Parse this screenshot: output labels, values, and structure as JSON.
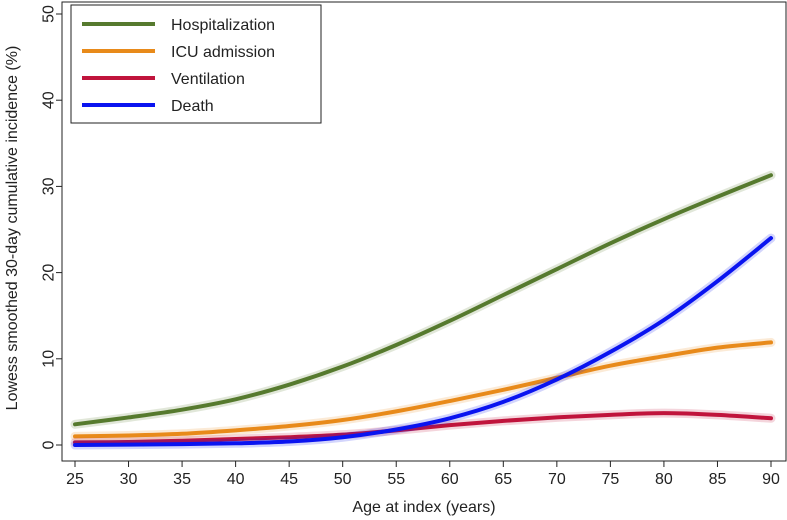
{
  "chart_data": {
    "type": "line",
    "title": "",
    "xlabel": "Age at index (years)",
    "ylabel": "Lowess smoothed 30-day cumulative incidence (%)",
    "xlim": [
      25,
      90
    ],
    "ylim": [
      0,
      50
    ],
    "x_ticks": [
      25,
      30,
      35,
      40,
      45,
      50,
      55,
      60,
      65,
      70,
      75,
      80,
      85,
      90
    ],
    "y_ticks": [
      0,
      10,
      20,
      30,
      40,
      50
    ],
    "legend_position": "top-left",
    "x": [
      25,
      30,
      35,
      40,
      45,
      50,
      55,
      60,
      65,
      70,
      75,
      80,
      85,
      90
    ],
    "series": [
      {
        "name": "Hospitalization",
        "color": "#567a2e",
        "values": [
          2.4,
          3.2,
          4.1,
          5.3,
          7.0,
          9.1,
          11.6,
          14.4,
          17.4,
          20.4,
          23.4,
          26.2,
          28.8,
          31.3
        ]
      },
      {
        "name": "ICU admission",
        "color": "#e88a1a",
        "values": [
          1.0,
          1.1,
          1.3,
          1.7,
          2.2,
          2.9,
          3.9,
          5.1,
          6.4,
          7.8,
          9.2,
          10.3,
          11.3,
          11.9
        ]
      },
      {
        "name": "Ventilation",
        "color": "#c0143c",
        "values": [
          0.3,
          0.35,
          0.5,
          0.7,
          0.9,
          1.2,
          1.7,
          2.3,
          2.8,
          3.2,
          3.5,
          3.7,
          3.5,
          3.1
        ]
      },
      {
        "name": "Death",
        "color": "#0a14f0",
        "values": [
          0.0,
          0.05,
          0.1,
          0.2,
          0.4,
          0.9,
          1.8,
          3.1,
          5.0,
          7.6,
          10.8,
          14.5,
          19.0,
          24.0
        ]
      }
    ]
  }
}
